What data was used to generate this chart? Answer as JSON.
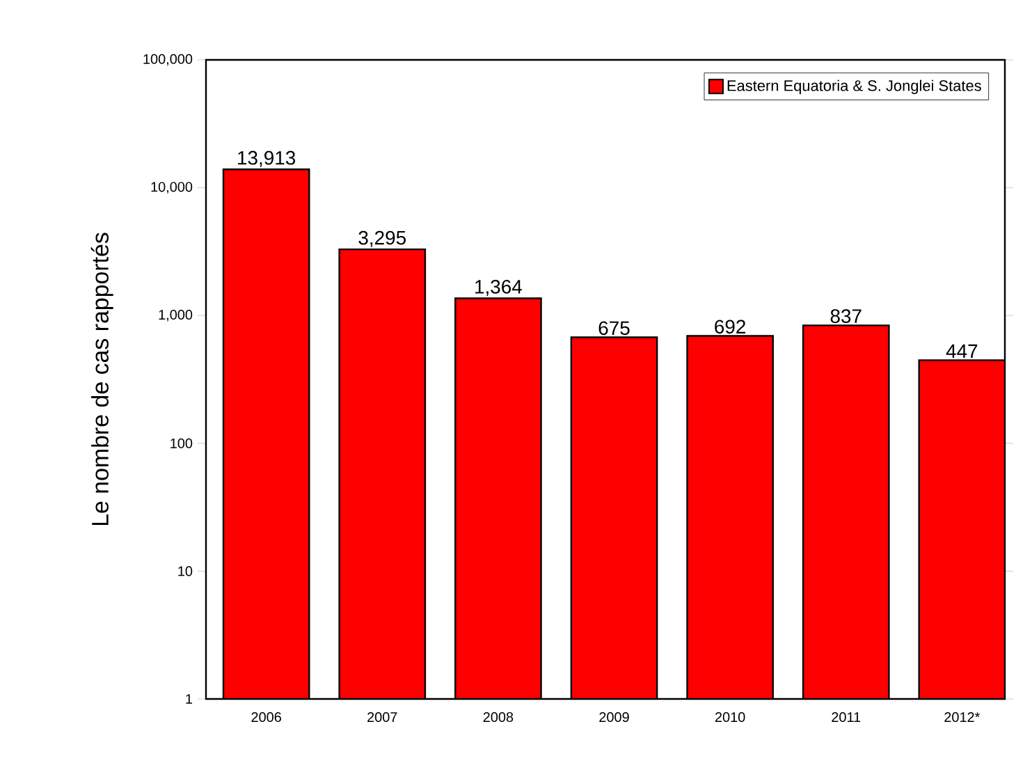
{
  "chart_data": {
    "type": "bar",
    "ylabel": "Le nombre de cas rapportés",
    "categories": [
      "2006",
      "2007",
      "2008",
      "2009",
      "2010",
      "2011",
      "2012*"
    ],
    "series": [
      {
        "name": "Eastern Equatoria & S. Jonglei States",
        "color": "#ff0000",
        "values": [
          13913,
          3295,
          1364,
          675,
          692,
          837,
          447
        ],
        "value_labels": [
          "13,913",
          "3,295",
          "1,364",
          "675",
          "692",
          "837",
          "447"
        ]
      }
    ],
    "log": true,
    "ylim": [
      1,
      100000
    ],
    "yticks": [
      1,
      10,
      100,
      {
        "value": 1000,
        "label": "1,000"
      },
      {
        "value": 10000,
        "label": "10,000"
      },
      {
        "value": 100000,
        "label": "100,000"
      }
    ],
    "legend": "top right",
    "grid": false
  }
}
